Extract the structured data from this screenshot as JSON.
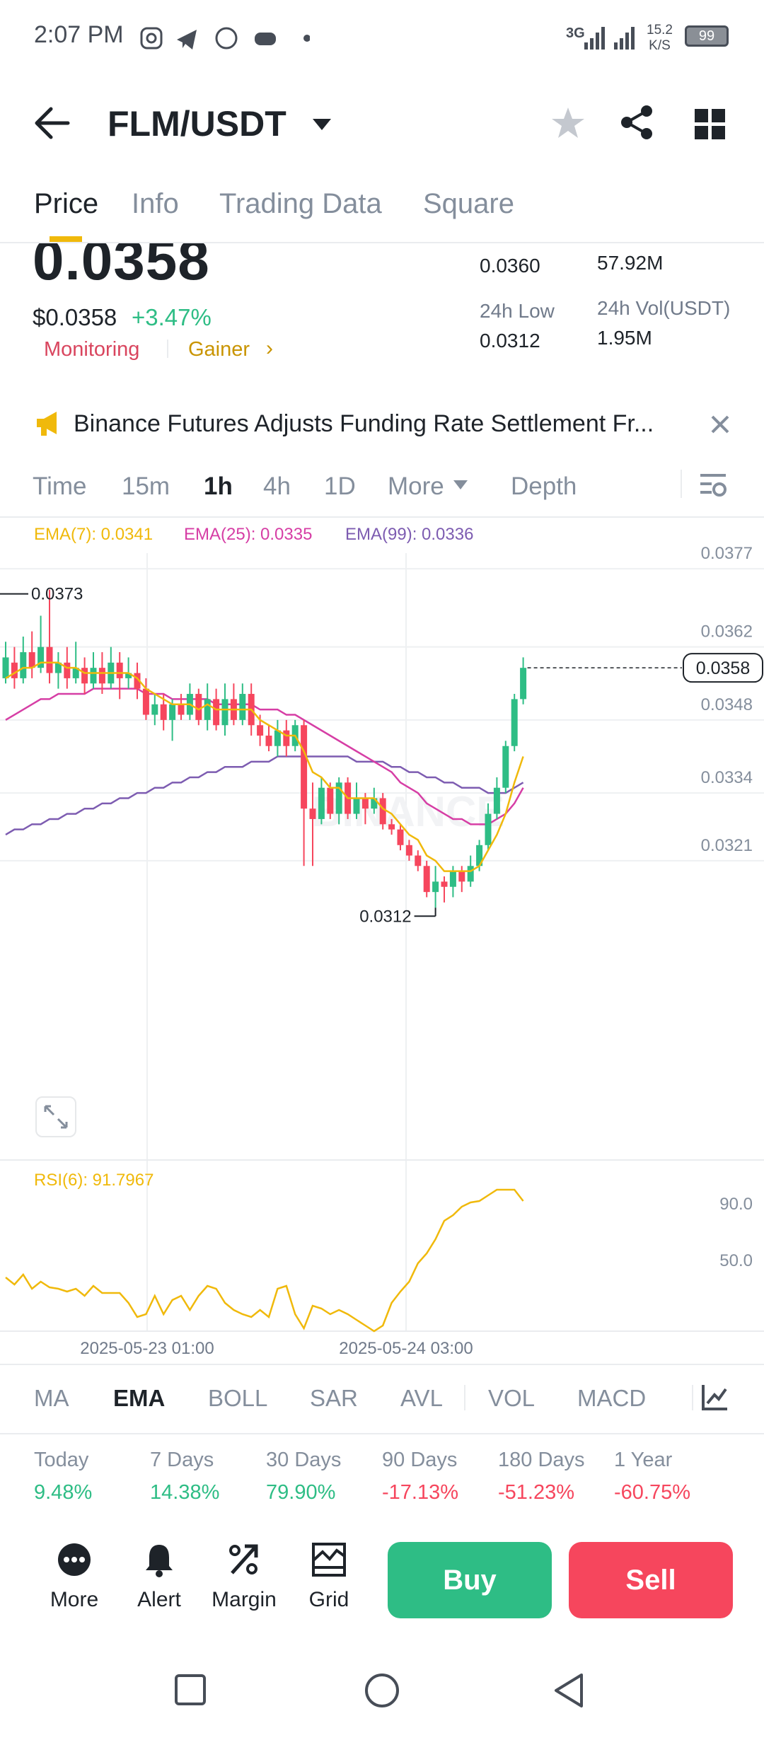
{
  "status_bar": {
    "time": "2:07 PM",
    "network": "3G",
    "speed_value": "15.2",
    "speed_unit": "K/S",
    "battery": "99"
  },
  "header": {
    "pair": "FLM/USDT"
  },
  "tabs": [
    "Price",
    "Info",
    "Trading Data",
    "Square"
  ],
  "price": {
    "last": "0.0358",
    "usd": "$0.0358",
    "change": "+3.47%",
    "tag_monitoring": "Monitoring",
    "tag_gainer": "Gainer",
    "high_value": "0.0360",
    "vol_flm_value": "57.92M",
    "low_label": "24h Low",
    "low_value": "0.0312",
    "vol_usdt_label": "24h Vol(USDT)",
    "vol_usdt_value": "1.95M"
  },
  "announcement": {
    "text": "Binance Futures Adjusts Funding Rate Settlement Fr..."
  },
  "timeframes": [
    "Time",
    "15m",
    "1h",
    "4h",
    "1D",
    "More",
    "Depth"
  ],
  "chart_data": {
    "type": "candlestick",
    "ema_labels": {
      "ema7": "EMA(7): 0.0341",
      "ema25": "EMA(25): 0.0335",
      "ema99": "EMA(99): 0.0336"
    },
    "y_ticks": [
      "0.0377",
      "0.0362",
      "0.0348",
      "0.0334",
      "0.0321"
    ],
    "ylim": [
      0.031,
      0.038
    ],
    "high_marker": "0.0373",
    "low_marker": "0.0312",
    "last_price_marker": "0.0358",
    "watermark": "BINANCE",
    "candles": [
      {
        "o": 0.0356,
        "c": 0.036,
        "h": 0.0363,
        "l": 0.0355
      },
      {
        "o": 0.0359,
        "c": 0.0356,
        "h": 0.0362,
        "l": 0.0354
      },
      {
        "o": 0.0356,
        "c": 0.0361,
        "h": 0.0364,
        "l": 0.0355
      },
      {
        "o": 0.0361,
        "c": 0.0358,
        "h": 0.0365,
        "l": 0.0356
      },
      {
        "o": 0.0358,
        "c": 0.0362,
        "h": 0.0368,
        "l": 0.0357
      },
      {
        "o": 0.0362,
        "c": 0.0357,
        "h": 0.0373,
        "l": 0.0355
      },
      {
        "o": 0.0357,
        "c": 0.0359,
        "h": 0.0361,
        "l": 0.0354
      },
      {
        "o": 0.0359,
        "c": 0.0356,
        "h": 0.0362,
        "l": 0.0354
      },
      {
        "o": 0.0356,
        "c": 0.0358,
        "h": 0.0363,
        "l": 0.0355
      },
      {
        "o": 0.0358,
        "c": 0.0355,
        "h": 0.036,
        "l": 0.0353
      },
      {
        "o": 0.0355,
        "c": 0.0358,
        "h": 0.0361,
        "l": 0.0354
      },
      {
        "o": 0.0358,
        "c": 0.0355,
        "h": 0.0361,
        "l": 0.0353
      },
      {
        "o": 0.0355,
        "c": 0.0359,
        "h": 0.0362,
        "l": 0.0354
      },
      {
        "o": 0.0359,
        "c": 0.0356,
        "h": 0.0361,
        "l": 0.0352
      },
      {
        "o": 0.0356,
        "c": 0.0357,
        "h": 0.036,
        "l": 0.0354
      },
      {
        "o": 0.0357,
        "c": 0.0354,
        "h": 0.0359,
        "l": 0.0352
      },
      {
        "o": 0.0354,
        "c": 0.0349,
        "h": 0.0356,
        "l": 0.0348
      },
      {
        "o": 0.0349,
        "c": 0.0351,
        "h": 0.0353,
        "l": 0.0347
      },
      {
        "o": 0.0351,
        "c": 0.0348,
        "h": 0.0353,
        "l": 0.0346
      },
      {
        "o": 0.0348,
        "c": 0.0351,
        "h": 0.0352,
        "l": 0.0344
      },
      {
        "o": 0.0351,
        "c": 0.0349,
        "h": 0.0353,
        "l": 0.0348
      },
      {
        "o": 0.0349,
        "c": 0.0353,
        "h": 0.0355,
        "l": 0.0348
      },
      {
        "o": 0.0353,
        "c": 0.0348,
        "h": 0.0354,
        "l": 0.0347
      },
      {
        "o": 0.0348,
        "c": 0.0352,
        "h": 0.0355,
        "l": 0.0346
      },
      {
        "o": 0.0352,
        "c": 0.0347,
        "h": 0.0354,
        "l": 0.0346
      },
      {
        "o": 0.0347,
        "c": 0.0352,
        "h": 0.0355,
        "l": 0.0345
      },
      {
        "o": 0.0352,
        "c": 0.0348,
        "h": 0.0355,
        "l": 0.0347
      },
      {
        "o": 0.0348,
        "c": 0.0353,
        "h": 0.0355,
        "l": 0.0347
      },
      {
        "o": 0.0353,
        "c": 0.0347,
        "h": 0.0355,
        "l": 0.0345
      },
      {
        "o": 0.0347,
        "c": 0.0345,
        "h": 0.0349,
        "l": 0.0343
      },
      {
        "o": 0.0345,
        "c": 0.0343,
        "h": 0.0347,
        "l": 0.0342
      },
      {
        "o": 0.0343,
        "c": 0.0346,
        "h": 0.0348,
        "l": 0.0341
      },
      {
        "o": 0.0346,
        "c": 0.0343,
        "h": 0.0348,
        "l": 0.0341
      },
      {
        "o": 0.0343,
        "c": 0.0347,
        "h": 0.0348,
        "l": 0.0342
      },
      {
        "o": 0.0347,
        "c": 0.0331,
        "h": 0.0348,
        "l": 0.032
      },
      {
        "o": 0.0331,
        "c": 0.0329,
        "h": 0.0336,
        "l": 0.032
      },
      {
        "o": 0.0329,
        "c": 0.0335,
        "h": 0.0337,
        "l": 0.0328
      },
      {
        "o": 0.0335,
        "c": 0.033,
        "h": 0.0336,
        "l": 0.0329
      },
      {
        "o": 0.033,
        "c": 0.0336,
        "h": 0.0337,
        "l": 0.0328
      },
      {
        "o": 0.0336,
        "c": 0.033,
        "h": 0.0337,
        "l": 0.0329
      },
      {
        "o": 0.033,
        "c": 0.0333,
        "h": 0.0336,
        "l": 0.0329
      },
      {
        "o": 0.0333,
        "c": 0.0331,
        "h": 0.0334,
        "l": 0.0328
      },
      {
        "o": 0.0331,
        "c": 0.0333,
        "h": 0.0335,
        "l": 0.033
      },
      {
        "o": 0.0333,
        "c": 0.0328,
        "h": 0.0334,
        "l": 0.0327
      },
      {
        "o": 0.0328,
        "c": 0.0327,
        "h": 0.0329,
        "l": 0.0326
      },
      {
        "o": 0.0327,
        "c": 0.0324,
        "h": 0.0328,
        "l": 0.0323
      },
      {
        "o": 0.0324,
        "c": 0.0322,
        "h": 0.0325,
        "l": 0.0321
      },
      {
        "o": 0.0322,
        "c": 0.032,
        "h": 0.0323,
        "l": 0.0319
      },
      {
        "o": 0.032,
        "c": 0.0315,
        "h": 0.0321,
        "l": 0.0314
      },
      {
        "o": 0.0315,
        "c": 0.0317,
        "h": 0.032,
        "l": 0.0312
      },
      {
        "o": 0.0317,
        "c": 0.0316,
        "h": 0.0318,
        "l": 0.0313
      },
      {
        "o": 0.0316,
        "c": 0.0319,
        "h": 0.032,
        "l": 0.0314
      },
      {
        "o": 0.0319,
        "c": 0.0317,
        "h": 0.032,
        "l": 0.0315
      },
      {
        "o": 0.0317,
        "c": 0.032,
        "h": 0.0322,
        "l": 0.0316
      },
      {
        "o": 0.032,
        "c": 0.0324,
        "h": 0.0325,
        "l": 0.0319
      },
      {
        "o": 0.0324,
        "c": 0.033,
        "h": 0.0332,
        "l": 0.0323
      },
      {
        "o": 0.033,
        "c": 0.0335,
        "h": 0.0337,
        "l": 0.0329
      },
      {
        "o": 0.0335,
        "c": 0.0343,
        "h": 0.0344,
        "l": 0.0334
      },
      {
        "o": 0.0343,
        "c": 0.0352,
        "h": 0.0353,
        "l": 0.0342
      },
      {
        "o": 0.0352,
        "c": 0.0358,
        "h": 0.036,
        "l": 0.0351
      }
    ],
    "ema7": [
      0.0356,
      0.0357,
      0.0358,
      0.0358,
      0.0359,
      0.0359,
      0.0359,
      0.0358,
      0.0358,
      0.0357,
      0.0357,
      0.0357,
      0.0357,
      0.0357,
      0.0357,
      0.0356,
      0.0354,
      0.0353,
      0.0352,
      0.0351,
      0.0351,
      0.0351,
      0.035,
      0.0351,
      0.035,
      0.035,
      0.035,
      0.035,
      0.035,
      0.0348,
      0.0347,
      0.0346,
      0.0345,
      0.0345,
      0.0342,
      0.0338,
      0.0337,
      0.0335,
      0.0335,
      0.0333,
      0.0333,
      0.0333,
      0.0333,
      0.0331,
      0.033,
      0.0328,
      0.0326,
      0.0325,
      0.0322,
      0.0321,
      0.0319,
      0.0319,
      0.0319,
      0.0319,
      0.032,
      0.0323,
      0.0326,
      0.033,
      0.0336,
      0.0341
    ],
    "ema25": [
      0.0348,
      0.0349,
      0.035,
      0.0351,
      0.0352,
      0.0352,
      0.0353,
      0.0353,
      0.0353,
      0.0353,
      0.0354,
      0.0354,
      0.0354,
      0.0354,
      0.0354,
      0.0354,
      0.0353,
      0.0353,
      0.0353,
      0.0352,
      0.0352,
      0.0352,
      0.0352,
      0.0352,
      0.0351,
      0.0351,
      0.0351,
      0.0351,
      0.0351,
      0.035,
      0.035,
      0.035,
      0.0349,
      0.0349,
      0.0348,
      0.0347,
      0.0346,
      0.0345,
      0.0344,
      0.0343,
      0.0342,
      0.0341,
      0.034,
      0.0339,
      0.0338,
      0.0336,
      0.0335,
      0.0334,
      0.0332,
      0.0331,
      0.033,
      0.0329,
      0.0329,
      0.0328,
      0.0328,
      0.0328,
      0.0329,
      0.033,
      0.0332,
      0.0335
    ],
    "ema99": [
      0.0326,
      0.0327,
      0.0327,
      0.0328,
      0.0328,
      0.0329,
      0.0329,
      0.033,
      0.033,
      0.0331,
      0.0331,
      0.0332,
      0.0332,
      0.0333,
      0.0333,
      0.0334,
      0.0334,
      0.0335,
      0.0335,
      0.0336,
      0.0336,
      0.0337,
      0.0337,
      0.0338,
      0.0338,
      0.0339,
      0.0339,
      0.0339,
      0.034,
      0.034,
      0.034,
      0.0341,
      0.0341,
      0.0341,
      0.0341,
      0.0341,
      0.0341,
      0.0341,
      0.0341,
      0.0341,
      0.034,
      0.034,
      0.034,
      0.034,
      0.0339,
      0.0339,
      0.0338,
      0.0338,
      0.0337,
      0.0337,
      0.0336,
      0.0336,
      0.0335,
      0.0335,
      0.0335,
      0.0334,
      0.0334,
      0.0334,
      0.0335,
      0.0336
    ],
    "rsi_label": "RSI(6): 91.7967",
    "rsi_ticks": [
      "90.0",
      "50.0"
    ],
    "rsi_ylim": [
      0,
      100
    ],
    "rsi": [
      38,
      33,
      40,
      30,
      35,
      31,
      30,
      28,
      30,
      25,
      32,
      27,
      27,
      27,
      20,
      10,
      12,
      25,
      12,
      22,
      25,
      15,
      25,
      32,
      30,
      20,
      15,
      12,
      10,
      15,
      10,
      30,
      32,
      12,
      2,
      18,
      16,
      12,
      15,
      12,
      8,
      4,
      0,
      4,
      20,
      28,
      35,
      48,
      55,
      65,
      78,
      82,
      88,
      91,
      92,
      96,
      100,
      100,
      100,
      92
    ]
  },
  "x_labels": [
    "2025-05-23 01:00",
    "2025-05-24 03:00"
  ],
  "indicators": [
    "MA",
    "EMA",
    "BOLL",
    "SAR",
    "AVL",
    "VOL",
    "MACD"
  ],
  "performance": [
    {
      "label": "Today",
      "value": "9.48%",
      "dir": "up"
    },
    {
      "label": "7 Days",
      "value": "14.38%",
      "dir": "up"
    },
    {
      "label": "30 Days",
      "value": "79.90%",
      "dir": "up"
    },
    {
      "label": "90 Days",
      "value": "-17.13%",
      "dir": "down"
    },
    {
      "label": "180 Days",
      "value": "-51.23%",
      "dir": "down"
    },
    {
      "label": "1 Year",
      "value": "-60.75%",
      "dir": "down"
    }
  ],
  "bottom_bar": {
    "more": "More",
    "alert": "Alert",
    "margin": "Margin",
    "grid": "Grid",
    "buy": "Buy",
    "sell": "Sell"
  },
  "colors": {
    "up": "#2ebd85",
    "down": "#f6465d",
    "ema7": "#f0b90b",
    "ema25": "#d63ea5",
    "ema99": "#7d5cb1",
    "brand": "#f0b90b"
  }
}
